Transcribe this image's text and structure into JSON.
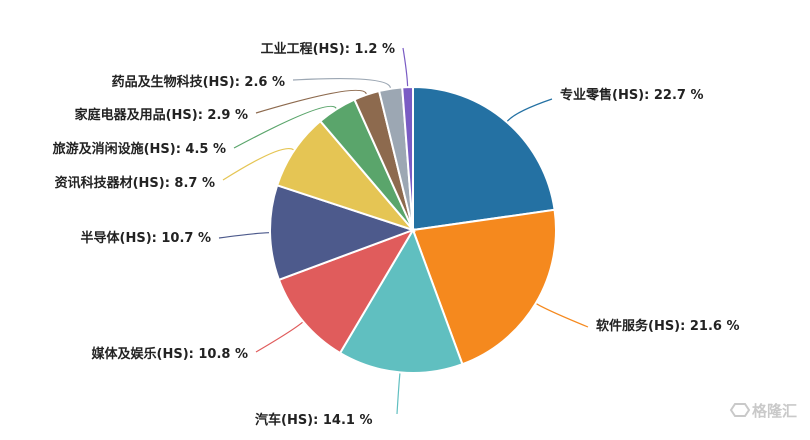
{
  "chart_data": {
    "type": "pie",
    "start_angle_deg": 0,
    "direction": "clockwise",
    "slices": [
      {
        "label": "专业零售(HS): 22.7 %",
        "value": 22.7,
        "color": "#2471a3"
      },
      {
        "label": "软件服务(HS): 21.6 %",
        "value": 21.6,
        "color": "#f5891e"
      },
      {
        "label": "汽车(HS): 14.1 %",
        "value": 14.1,
        "color": "#60bfc0"
      },
      {
        "label": "媒体及娱乐(HS): 10.8 %",
        "value": 10.8,
        "color": "#e05c5c"
      },
      {
        "label": "半导体(HS): 10.7 %",
        "value": 10.7,
        "color": "#4d5a8c"
      },
      {
        "label": "资讯科技器材(HS): 8.7 %",
        "value": 8.7,
        "color": "#e5c554"
      },
      {
        "label": "旅游及消闲设施(HS): 4.5 %",
        "value": 4.5,
        "color": "#5aa56b"
      },
      {
        "label": "家庭电器及用品(HS): 2.9 %",
        "value": 2.9,
        "color": "#8d6a4e"
      },
      {
        "label": "药品及生物科技(HS): 2.6 %",
        "value": 2.6,
        "color": "#9ca7b3"
      },
      {
        "label": "工业工程(HS): 1.2 %",
        "value": 1.2,
        "color": "#7a5cc4"
      }
    ]
  },
  "watermark": {
    "text": "格隆汇"
  }
}
